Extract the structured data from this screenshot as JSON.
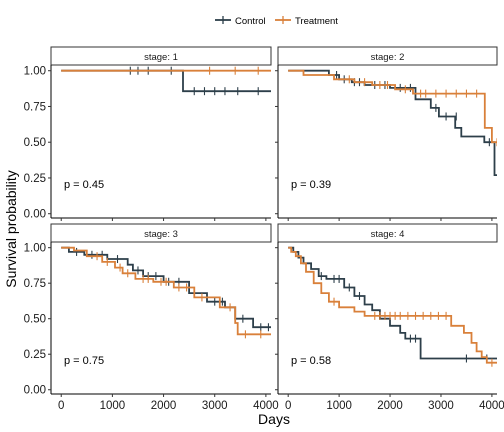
{
  "chart_data": {
    "type": "line",
    "subtype": "kaplan-meier",
    "xlabel": "Days",
    "ylabel": "Survival probability",
    "xlim": [
      -200,
      4100
    ],
    "ylim": [
      -0.03,
      1.04
    ],
    "x_ticks": [
      0,
      1000,
      2000,
      3000,
      4000
    ],
    "y_ticks": [
      0,
      0.25,
      0.5,
      0.75,
      1
    ],
    "y_tick_labels": [
      "0.00",
      "0.25",
      "0.50",
      "0.75",
      "1.00"
    ],
    "grid": false,
    "legend_position": "top",
    "legend": [
      {
        "name": "Control",
        "color": "#2d3f4a"
      },
      {
        "name": "Treatment",
        "color": "#d9803a"
      }
    ],
    "panels": [
      {
        "strip": "stage: 1",
        "pvalue": "p = 0.45",
        "series": [
          {
            "name": "Control",
            "color": "#2d3f4a",
            "steps": [
              [
                0,
                1.0
              ],
              [
                2380,
                0.857
              ],
              [
                4150,
                0.857
              ]
            ],
            "censors": [
              [
                1350,
                1.0
              ],
              [
                1500,
                1.0
              ],
              [
                1700,
                1.0
              ],
              [
                2150,
                1.0
              ],
              [
                2600,
                0.857
              ],
              [
                2800,
                0.857
              ],
              [
                3000,
                0.857
              ],
              [
                3200,
                0.857
              ],
              [
                3450,
                0.857
              ],
              [
                3850,
                0.857
              ]
            ]
          },
          {
            "name": "Treatment",
            "color": "#d9803a",
            "steps": [
              [
                0,
                1.0
              ],
              [
                4150,
                1.0
              ]
            ],
            "censors": [
              [
                2900,
                1.0
              ],
              [
                3400,
                1.0
              ],
              [
                3850,
                1.0
              ]
            ]
          }
        ]
      },
      {
        "strip": "stage: 2",
        "pvalue": "p = 0.39",
        "series": [
          {
            "name": "Control",
            "color": "#2d3f4a",
            "steps": [
              [
                0,
                1.0
              ],
              [
                800,
                0.97
              ],
              [
                1000,
                0.94
              ],
              [
                1250,
                0.92
              ],
              [
                1500,
                0.9
              ],
              [
                2000,
                0.88
              ],
              [
                2500,
                0.8
              ],
              [
                2800,
                0.74
              ],
              [
                2960,
                0.68
              ],
              [
                3280,
                0.6
              ],
              [
                3400,
                0.54
              ],
              [
                3850,
                0.5
              ],
              [
                4050,
                0.27
              ],
              [
                4150,
                0.27
              ]
            ],
            "censors": [
              [
                950,
                0.97
              ],
              [
                1100,
                0.94
              ],
              [
                1300,
                0.92
              ],
              [
                1400,
                0.92
              ],
              [
                1700,
                0.9
              ],
              [
                1900,
                0.9
              ],
              [
                2200,
                0.88
              ],
              [
                2400,
                0.88
              ],
              [
                2900,
                0.74
              ],
              [
                3100,
                0.68
              ],
              [
                3300,
                0.68
              ],
              [
                3950,
                0.5
              ]
            ]
          },
          {
            "name": "Treatment",
            "color": "#d9803a",
            "steps": [
              [
                0,
                1.0
              ],
              [
                300,
                0.97
              ],
              [
                900,
                0.94
              ],
              [
                1300,
                0.92
              ],
              [
                1650,
                0.9
              ],
              [
                2100,
                0.87
              ],
              [
                2450,
                0.84
              ],
              [
                3860,
                0.6
              ],
              [
                4000,
                0.5
              ],
              [
                4150,
                0.5
              ]
            ],
            "censors": [
              [
                1200,
                0.94
              ],
              [
                1500,
                0.92
              ],
              [
                1800,
                0.9
              ],
              [
                1950,
                0.9
              ],
              [
                2300,
                0.87
              ],
              [
                2600,
                0.84
              ],
              [
                2700,
                0.84
              ],
              [
                2900,
                0.84
              ],
              [
                3100,
                0.84
              ],
              [
                3300,
                0.84
              ],
              [
                3500,
                0.84
              ],
              [
                3700,
                0.84
              ],
              [
                4100,
                0.5
              ]
            ]
          }
        ]
      },
      {
        "strip": "stage: 3",
        "pvalue": "p = 0.75",
        "series": [
          {
            "name": "Control",
            "color": "#2d3f4a",
            "steps": [
              [
                0,
                1.0
              ],
              [
                150,
                0.97
              ],
              [
                450,
                0.95
              ],
              [
                900,
                0.92
              ],
              [
                1300,
                0.88
              ],
              [
                1400,
                0.84
              ],
              [
                1600,
                0.8
              ],
              [
                2000,
                0.76
              ],
              [
                2500,
                0.68
              ],
              [
                2850,
                0.62
              ],
              [
                3200,
                0.58
              ],
              [
                3400,
                0.5
              ],
              [
                3750,
                0.44
              ],
              [
                4150,
                0.34
              ]
            ],
            "censors": [
              [
                300,
                0.97
              ],
              [
                600,
                0.95
              ],
              [
                800,
                0.95
              ],
              [
                1100,
                0.92
              ],
              [
                1500,
                0.84
              ],
              [
                1700,
                0.8
              ],
              [
                1850,
                0.8
              ],
              [
                2100,
                0.76
              ],
              [
                2300,
                0.76
              ],
              [
                2600,
                0.68
              ],
              [
                3000,
                0.62
              ],
              [
                3150,
                0.62
              ],
              [
                3550,
                0.5
              ],
              [
                3900,
                0.44
              ],
              [
                4050,
                0.44
              ]
            ]
          },
          {
            "name": "Treatment",
            "color": "#d9803a",
            "steps": [
              [
                0,
                1.0
              ],
              [
                250,
                0.98
              ],
              [
                500,
                0.94
              ],
              [
                800,
                0.9
              ],
              [
                1050,
                0.86
              ],
              [
                1200,
                0.82
              ],
              [
                1450,
                0.78
              ],
              [
                1800,
                0.76
              ],
              [
                2200,
                0.72
              ],
              [
                2600,
                0.65
              ],
              [
                3100,
                0.58
              ],
              [
                3400,
                0.47
              ],
              [
                3450,
                0.39
              ],
              [
                4150,
                0.39
              ]
            ],
            "censors": [
              [
                700,
                0.94
              ],
              [
                900,
                0.9
              ],
              [
                1150,
                0.86
              ],
              [
                1300,
                0.82
              ],
              [
                1600,
                0.78
              ],
              [
                1700,
                0.78
              ],
              [
                1950,
                0.76
              ],
              [
                2050,
                0.76
              ],
              [
                2300,
                0.72
              ],
              [
                2450,
                0.72
              ],
              [
                2750,
                0.65
              ],
              [
                3300,
                0.58
              ],
              [
                3600,
                0.39
              ],
              [
                3900,
                0.39
              ]
            ]
          }
        ]
      },
      {
        "strip": "stage: 4",
        "pvalue": "p = 0.58",
        "series": [
          {
            "name": "Control",
            "color": "#2d3f4a",
            "steps": [
              [
                0,
                1.0
              ],
              [
                100,
                0.97
              ],
              [
                200,
                0.93
              ],
              [
                300,
                0.89
              ],
              [
                450,
                0.85
              ],
              [
                600,
                0.8
              ],
              [
                750,
                0.78
              ],
              [
                1100,
                0.72
              ],
              [
                1300,
                0.66
              ],
              [
                1500,
                0.6
              ],
              [
                1650,
                0.56
              ],
              [
                1800,
                0.5
              ],
              [
                2000,
                0.45
              ],
              [
                2200,
                0.4
              ],
              [
                2300,
                0.36
              ],
              [
                2600,
                0.22
              ],
              [
                4150,
                0.22
              ]
            ],
            "censors": [
              [
                650,
                0.8
              ],
              [
                900,
                0.78
              ],
              [
                1000,
                0.78
              ],
              [
                1200,
                0.72
              ],
              [
                1400,
                0.66
              ],
              [
                2400,
                0.36
              ],
              [
                2500,
                0.36
              ],
              [
                3500,
                0.22
              ],
              [
                3900,
                0.22
              ]
            ]
          },
          {
            "name": "Treatment",
            "color": "#d9803a",
            "steps": [
              [
                0,
                1.0
              ],
              [
                60,
                0.97
              ],
              [
                150,
                0.94
              ],
              [
                250,
                0.89
              ],
              [
                350,
                0.83
              ],
              [
                500,
                0.75
              ],
              [
                650,
                0.68
              ],
              [
                800,
                0.62
              ],
              [
                1000,
                0.58
              ],
              [
                1300,
                0.55
              ],
              [
                1500,
                0.52
              ],
              [
                3200,
                0.45
              ],
              [
                3450,
                0.4
              ],
              [
                3600,
                0.33
              ],
              [
                3700,
                0.27
              ],
              [
                3800,
                0.23
              ],
              [
                3900,
                0.19
              ],
              [
                4150,
                0.19
              ]
            ],
            "censors": [
              [
                900,
                0.62
              ],
              [
                1700,
                0.52
              ],
              [
                1800,
                0.52
              ],
              [
                1900,
                0.52
              ],
              [
                2000,
                0.52
              ],
              [
                2100,
                0.52
              ],
              [
                2200,
                0.52
              ],
              [
                2350,
                0.52
              ],
              [
                2500,
                0.52
              ],
              [
                2650,
                0.52
              ],
              [
                2800,
                0.52
              ],
              [
                2950,
                0.52
              ],
              [
                3100,
                0.52
              ],
              [
                4000,
                0.19
              ]
            ]
          }
        ]
      }
    ]
  }
}
